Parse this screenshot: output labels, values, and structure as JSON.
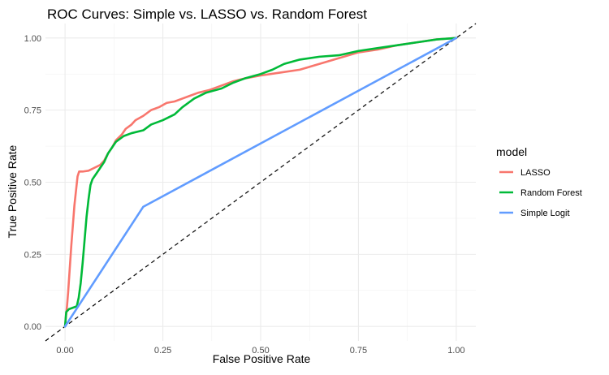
{
  "chart_data": {
    "type": "line",
    "title": "ROC Curves: Simple vs. LASSO vs. Random Forest",
    "xlabel": "False Positive Rate",
    "ylabel": "True Positive Rate",
    "xlim": [
      -0.05,
      1.05
    ],
    "ylim": [
      -0.05,
      1.05
    ],
    "x_ticks": [
      {
        "value": 0,
        "label": "0.00"
      },
      {
        "value": 0.25,
        "label": "0.25"
      },
      {
        "value": 0.5,
        "label": "0.50"
      },
      {
        "value": 0.75,
        "label": "0.75"
      },
      {
        "value": 1,
        "label": "1.00"
      }
    ],
    "y_ticks": [
      {
        "value": 0,
        "label": "0.00"
      },
      {
        "value": 0.25,
        "label": "0.25"
      },
      {
        "value": 0.5,
        "label": "0.50"
      },
      {
        "value": 0.75,
        "label": "0.75"
      },
      {
        "value": 1,
        "label": "1.00"
      }
    ],
    "grid": true,
    "legend": {
      "title": "model",
      "position": "right"
    },
    "diagonal_reference": {
      "x": [
        0,
        1
      ],
      "y": [
        0,
        1
      ],
      "style": "dashed",
      "color": "#000000"
    },
    "series": [
      {
        "name": "LASSO",
        "color": "#F8766D",
        "points": [
          [
            0,
            0
          ],
          [
            0.002,
            0.03
          ],
          [
            0.005,
            0.07
          ],
          [
            0.008,
            0.12
          ],
          [
            0.012,
            0.2
          ],
          [
            0.016,
            0.28
          ],
          [
            0.02,
            0.35
          ],
          [
            0.024,
            0.42
          ],
          [
            0.028,
            0.47
          ],
          [
            0.032,
            0.52
          ],
          [
            0.036,
            0.537
          ],
          [
            0.045,
            0.537
          ],
          [
            0.06,
            0.54
          ],
          [
            0.075,
            0.55
          ],
          [
            0.09,
            0.56
          ],
          [
            0.1,
            0.575
          ],
          [
            0.11,
            0.6
          ],
          [
            0.12,
            0.62
          ],
          [
            0.13,
            0.645
          ],
          [
            0.145,
            0.665
          ],
          [
            0.155,
            0.685
          ],
          [
            0.17,
            0.7
          ],
          [
            0.18,
            0.715
          ],
          [
            0.2,
            0.73
          ],
          [
            0.22,
            0.75
          ],
          [
            0.24,
            0.76
          ],
          [
            0.26,
            0.775
          ],
          [
            0.28,
            0.78
          ],
          [
            0.3,
            0.79
          ],
          [
            0.32,
            0.8
          ],
          [
            0.34,
            0.81
          ],
          [
            0.37,
            0.82
          ],
          [
            0.4,
            0.835
          ],
          [
            0.43,
            0.85
          ],
          [
            0.46,
            0.86
          ],
          [
            0.5,
            0.87
          ],
          [
            0.55,
            0.88
          ],
          [
            0.6,
            0.89
          ],
          [
            0.65,
            0.91
          ],
          [
            0.7,
            0.93
          ],
          [
            0.75,
            0.95
          ],
          [
            0.8,
            0.96
          ],
          [
            0.85,
            0.975
          ],
          [
            0.9,
            0.985
          ],
          [
            0.95,
            0.995
          ],
          [
            1,
            1
          ]
        ]
      },
      {
        "name": "Random Forest",
        "color": "#00BA38",
        "points": [
          [
            0,
            0
          ],
          [
            0.003,
            0.05
          ],
          [
            0.01,
            0.06
          ],
          [
            0.02,
            0.065
          ],
          [
            0.03,
            0.07
          ],
          [
            0.035,
            0.1
          ],
          [
            0.04,
            0.15
          ],
          [
            0.045,
            0.22
          ],
          [
            0.05,
            0.3
          ],
          [
            0.055,
            0.38
          ],
          [
            0.06,
            0.44
          ],
          [
            0.065,
            0.49
          ],
          [
            0.07,
            0.51
          ],
          [
            0.075,
            0.52
          ],
          [
            0.08,
            0.53
          ],
          [
            0.09,
            0.55
          ],
          [
            0.1,
            0.57
          ],
          [
            0.11,
            0.6
          ],
          [
            0.12,
            0.62
          ],
          [
            0.13,
            0.64
          ],
          [
            0.15,
            0.66
          ],
          [
            0.17,
            0.67
          ],
          [
            0.2,
            0.68
          ],
          [
            0.22,
            0.7
          ],
          [
            0.25,
            0.715
          ],
          [
            0.28,
            0.735
          ],
          [
            0.3,
            0.76
          ],
          [
            0.33,
            0.79
          ],
          [
            0.36,
            0.81
          ],
          [
            0.4,
            0.825
          ],
          [
            0.43,
            0.845
          ],
          [
            0.46,
            0.86
          ],
          [
            0.5,
            0.875
          ],
          [
            0.53,
            0.89
          ],
          [
            0.56,
            0.91
          ],
          [
            0.6,
            0.925
          ],
          [
            0.65,
            0.935
          ],
          [
            0.7,
            0.94
          ],
          [
            0.75,
            0.955
          ],
          [
            0.8,
            0.965
          ],
          [
            0.85,
            0.975
          ],
          [
            0.9,
            0.985
          ],
          [
            0.95,
            0.995
          ],
          [
            1,
            1
          ]
        ]
      },
      {
        "name": "Simple Logit",
        "color": "#619CFF",
        "points": [
          [
            0,
            0
          ],
          [
            0.2,
            0.415
          ],
          [
            1,
            1
          ]
        ]
      }
    ]
  }
}
